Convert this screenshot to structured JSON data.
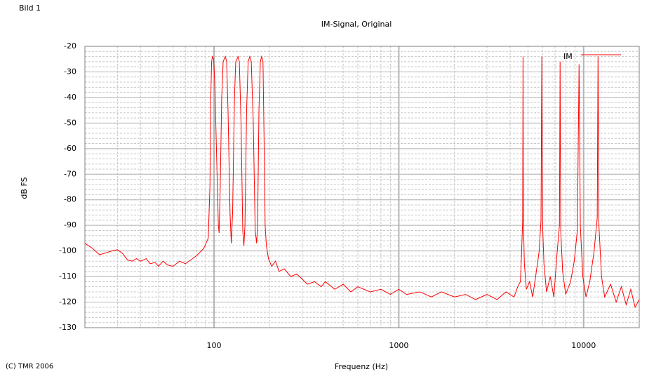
{
  "chart_data": {
    "type": "line",
    "figure_label": "Bild 1",
    "title": "IM-Signal, Original",
    "xlabel": "Frequenz (Hz)",
    "ylabel": "dB FS",
    "copyright": "(C) TMR 2006",
    "xscale": "log",
    "xlim": [
      20,
      20000
    ],
    "ylim": [
      -130,
      -20
    ],
    "xticks": [
      100,
      1000,
      10000
    ],
    "yticks": [
      -20,
      -30,
      -40,
      -50,
      -60,
      -70,
      -80,
      -90,
      -100,
      -110,
      -120,
      -130
    ],
    "grid": true,
    "legend": "upper right",
    "x": [
      20,
      22,
      24,
      28,
      30,
      32,
      34,
      36,
      38,
      40,
      43,
      45,
      48,
      50,
      53,
      56,
      60,
      65,
      70,
      80,
      88,
      93,
      95,
      96,
      97,
      98,
      99.5,
      101,
      103,
      105.5,
      106.5,
      108,
      110,
      112,
      115,
      117,
      119,
      122,
      124,
      126,
      129,
      131,
      135,
      137,
      140,
      143,
      145,
      147,
      150,
      153,
      156,
      159,
      163,
      167,
      170,
      172,
      175,
      178,
      181,
      184,
      186,
      189,
      192,
      197,
      205,
      215,
      225,
      240,
      260,
      280,
      300,
      320,
      350,
      380,
      400,
      450,
      500,
      550,
      600,
      700,
      800,
      900,
      1000,
      1100,
      1300,
      1500,
      1700,
      2000,
      2300,
      2600,
      3000,
      3400,
      3800,
      4200,
      4400,
      4550,
      4620,
      4680,
      4700,
      4720,
      4780,
      4900,
      5100,
      5300,
      5500,
      5750,
      5880,
      5940,
      6000,
      6100,
      6300,
      6600,
      6900,
      7200,
      7400,
      7460,
      7520,
      7700,
      8000,
      8500,
      8900,
      9250,
      9450,
      9600,
      9900,
      10300,
      10800,
      11400,
      11850,
      11970,
      12100,
      12500,
      13000,
      14000,
      15000,
      16000,
      17000,
      18000,
      19000,
      20000
    ],
    "series": [
      {
        "name": "IM",
        "color": "#ff0000",
        "values": [
          -97,
          -99,
          -101.5,
          -100,
          -99.5,
          -101,
          -103.5,
          -104,
          -103,
          -104,
          -103,
          -105,
          -104.5,
          -106,
          -104,
          -105.5,
          -106,
          -104,
          -105,
          -102,
          -99,
          -95,
          -75,
          -40,
          -26,
          -24,
          -25,
          -35,
          -60,
          -90,
          -93,
          -75,
          -40,
          -26,
          -24,
          -26,
          -45,
          -85,
          -97,
          -85,
          -40,
          -26,
          -24,
          -26,
          -50,
          -92,
          -98,
          -90,
          -45,
          -26,
          -24,
          -26,
          -50,
          -92,
          -97,
          -90,
          -45,
          -26,
          -24,
          -26,
          -50,
          -90,
          -98,
          -103,
          -106,
          -104,
          -108,
          -107,
          -110,
          -109,
          -111,
          -113,
          -112,
          -114,
          -112,
          -115,
          -113,
          -116,
          -114,
          -116,
          -115,
          -117,
          -115,
          -117,
          -116,
          -118,
          -116,
          -118,
          -117,
          -119,
          -117,
          -119,
          -116,
          -118,
          -114,
          -112,
          -100,
          -88,
          -24,
          -88,
          -105,
          -115,
          -112,
          -118,
          -110,
          -100,
          -88,
          -24,
          -90,
          -105,
          -116,
          -110,
          -118,
          -100,
          -90,
          -26,
          -92,
          -108,
          -117,
          -112,
          -104,
          -92,
          -27,
          -90,
          -110,
          -118,
          -112,
          -100,
          -87,
          -24,
          -90,
          -110,
          -118,
          -113,
          -120,
          -114,
          -121,
          -115,
          -122,
          -119
        ]
      }
    ]
  }
}
